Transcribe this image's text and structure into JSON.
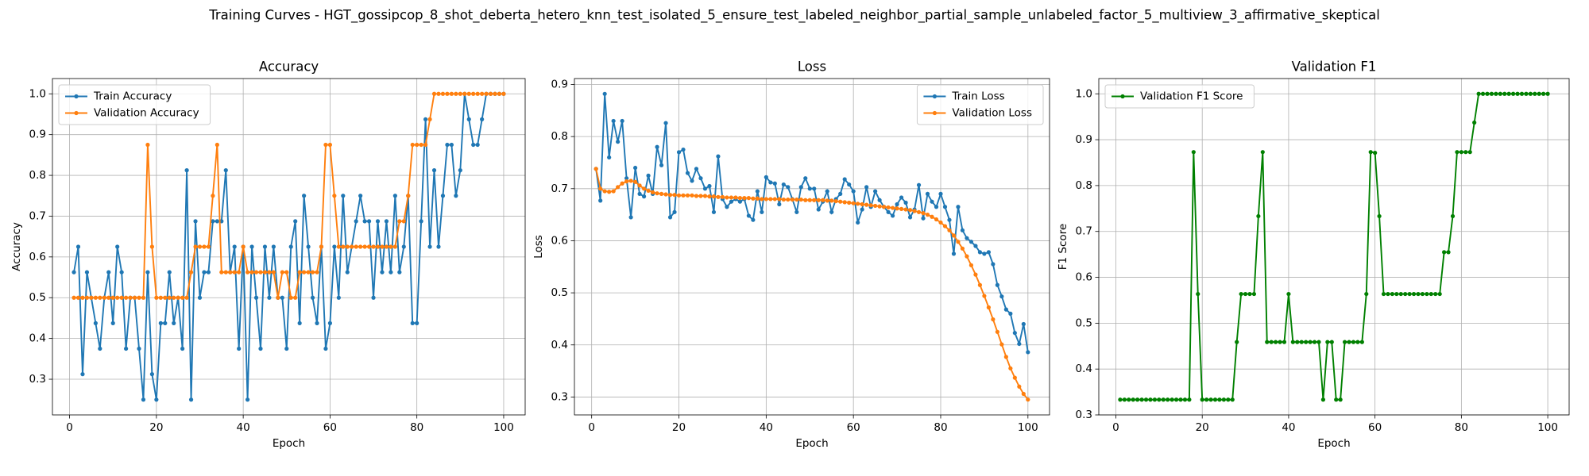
{
  "title": "Training Curves - HGT_gossipcop_8_shot_deberta_hetero_knn_test_isolated_5_ensure_test_labeled_neighbor_partial_sample_unlabeled_factor_5_multiview_3_affirmative_skeptical",
  "chart_data": [
    {
      "type": "line",
      "title": "Accuracy",
      "x_label": "Epoch",
      "y_label": "Accuracy",
      "x": [
        1,
        2,
        3,
        4,
        5,
        6,
        7,
        8,
        9,
        10,
        11,
        12,
        13,
        14,
        15,
        16,
        17,
        18,
        19,
        20,
        21,
        22,
        23,
        24,
        25,
        26,
        27,
        28,
        29,
        30,
        31,
        32,
        33,
        34,
        35,
        36,
        37,
        38,
        39,
        40,
        41,
        42,
        43,
        44,
        45,
        46,
        47,
        48,
        49,
        50,
        51,
        52,
        53,
        54,
        55,
        56,
        57,
        58,
        59,
        60,
        61,
        62,
        63,
        64,
        65,
        66,
        67,
        68,
        69,
        70,
        71,
        72,
        73,
        74,
        75,
        76,
        77,
        78,
        79,
        80,
        81,
        82,
        83,
        84,
        85,
        86,
        87,
        88,
        89,
        90,
        91,
        92,
        93,
        94,
        95,
        96,
        97,
        98,
        99,
        100
      ],
      "series": [
        {
          "name": "Train Accuracy",
          "color": "#1f77b4",
          "values": [
            0.5625,
            0.625,
            0.3125,
            0.5625,
            0.5,
            0.4375,
            0.375,
            0.5,
            0.5625,
            0.4375,
            0.625,
            0.5625,
            0.375,
            0.5,
            0.5,
            0.375,
            0.25,
            0.5625,
            0.3125,
            0.25,
            0.4375,
            0.4375,
            0.5625,
            0.4375,
            0.5,
            0.375,
            0.8125,
            0.25,
            0.6875,
            0.5,
            0.5625,
            0.5625,
            0.6875,
            0.6875,
            0.6875,
            0.8125,
            0.5625,
            0.625,
            0.375,
            0.625,
            0.25,
            0.625,
            0.5,
            0.375,
            0.625,
            0.5,
            0.625,
            0.5,
            0.5,
            0.375,
            0.625,
            0.6875,
            0.4375,
            0.75,
            0.625,
            0.5,
            0.4375,
            0.625,
            0.375,
            0.4375,
            0.625,
            0.5,
            0.75,
            0.5625,
            0.625,
            0.6875,
            0.75,
            0.6875,
            0.6875,
            0.5,
            0.6875,
            0.5625,
            0.6875,
            0.5625,
            0.75,
            0.5625,
            0.625,
            0.75,
            0.4375,
            0.4375,
            0.6875,
            0.9375,
            0.625,
            0.8125,
            0.625,
            0.75,
            0.875,
            0.875,
            0.75,
            0.8125,
            1,
            0.9375,
            0.875,
            0.875,
            0.9375,
            1,
            1,
            1,
            1,
            1
          ]
        },
        {
          "name": "Validation Accuracy",
          "color": "#ff7f0e",
          "values": [
            0.5,
            0.5,
            0.5,
            0.5,
            0.5,
            0.5,
            0.5,
            0.5,
            0.5,
            0.5,
            0.5,
            0.5,
            0.5,
            0.5,
            0.5,
            0.5,
            0.5,
            0.875,
            0.625,
            0.5,
            0.5,
            0.5,
            0.5,
            0.5,
            0.5,
            0.5,
            0.5,
            0.5625,
            0.625,
            0.625,
            0.625,
            0.625,
            0.75,
            0.875,
            0.5625,
            0.5625,
            0.5625,
            0.5625,
            0.5625,
            0.625,
            0.5625,
            0.5625,
            0.5625,
            0.5625,
            0.5625,
            0.5625,
            0.5625,
            0.5,
            0.5625,
            0.5625,
            0.5,
            0.5,
            0.5625,
            0.5625,
            0.5625,
            0.5625,
            0.5625,
            0.625,
            0.875,
            0.875,
            0.75,
            0.625,
            0.625,
            0.625,
            0.625,
            0.625,
            0.625,
            0.625,
            0.625,
            0.625,
            0.625,
            0.625,
            0.625,
            0.625,
            0.625,
            0.6875,
            0.6875,
            0.75,
            0.875,
            0.875,
            0.875,
            0.875,
            0.9375,
            1,
            1,
            1,
            1,
            1,
            1,
            1,
            1,
            1,
            1,
            1,
            1,
            1,
            1,
            1,
            1,
            1
          ]
        }
      ],
      "xlim": [
        -3.95,
        104.95
      ],
      "xticks": [
        0,
        20,
        40,
        60,
        80,
        100
      ],
      "ylim": [
        0.2125,
        1.0375
      ],
      "yticks": [
        0.3,
        0.4,
        0.5,
        0.6,
        0.7,
        0.8,
        0.9,
        {
          "value": 1,
          "label": "1.0"
        }
      ],
      "grid": true,
      "legend": "upper-left"
    },
    {
      "type": "line",
      "title": "Loss",
      "x_label": "Epoch",
      "y_label": "Loss",
      "x": [
        1,
        2,
        3,
        4,
        5,
        6,
        7,
        8,
        9,
        10,
        11,
        12,
        13,
        14,
        15,
        16,
        17,
        18,
        19,
        20,
        21,
        22,
        23,
        24,
        25,
        26,
        27,
        28,
        29,
        30,
        31,
        32,
        33,
        34,
        35,
        36,
        37,
        38,
        39,
        40,
        41,
        42,
        43,
        44,
        45,
        46,
        47,
        48,
        49,
        50,
        51,
        52,
        53,
        54,
        55,
        56,
        57,
        58,
        59,
        60,
        61,
        62,
        63,
        64,
        65,
        66,
        67,
        68,
        69,
        70,
        71,
        72,
        73,
        74,
        75,
        76,
        77,
        78,
        79,
        80,
        81,
        82,
        83,
        84,
        85,
        86,
        87,
        88,
        89,
        90,
        91,
        92,
        93,
        94,
        95,
        96,
        97,
        98,
        99,
        100
      ],
      "series": [
        {
          "name": "Train Loss",
          "color": "#1f77b4",
          "values": [
            0.738,
            0.677,
            0.882,
            0.76,
            0.83,
            0.79,
            0.83,
            0.72,
            0.645,
            0.74,
            0.69,
            0.685,
            0.725,
            0.69,
            0.78,
            0.745,
            0.826,
            0.645,
            0.655,
            0.77,
            0.775,
            0.73,
            0.715,
            0.738,
            0.72,
            0.7,
            0.705,
            0.655,
            0.762,
            0.68,
            0.665,
            0.675,
            0.68,
            0.675,
            0.68,
            0.648,
            0.64,
            0.695,
            0.655,
            0.722,
            0.712,
            0.71,
            0.67,
            0.708,
            0.703,
            0.68,
            0.655,
            0.703,
            0.72,
            0.7,
            0.7,
            0.66,
            0.675,
            0.695,
            0.655,
            0.68,
            0.69,
            0.718,
            0.708,
            0.695,
            0.635,
            0.66,
            0.703,
            0.665,
            0.695,
            0.678,
            0.665,
            0.655,
            0.648,
            0.67,
            0.683,
            0.673,
            0.645,
            0.66,
            0.707,
            0.643,
            0.69,
            0.675,
            0.665,
            0.69,
            0.665,
            0.64,
            0.575,
            0.665,
            0.62,
            0.605,
            0.598,
            0.59,
            0.578,
            0.575,
            0.578,
            0.555,
            0.515,
            0.493,
            0.468,
            0.46,
            0.423,
            0.402,
            0.44,
            0.386
          ]
        },
        {
          "name": "Validation Loss",
          "color": "#ff7f0e",
          "values": [
            0.738,
            0.7,
            0.695,
            0.694,
            0.695,
            0.703,
            0.71,
            0.714,
            0.715,
            0.713,
            0.706,
            0.7,
            0.696,
            0.693,
            0.691,
            0.69,
            0.689,
            0.688,
            0.688,
            0.687,
            0.687,
            0.687,
            0.687,
            0.686,
            0.686,
            0.686,
            0.685,
            0.685,
            0.684,
            0.684,
            0.683,
            0.683,
            0.683,
            0.682,
            0.682,
            0.682,
            0.681,
            0.681,
            0.68,
            0.68,
            0.68,
            0.68,
            0.68,
            0.679,
            0.679,
            0.679,
            0.679,
            0.679,
            0.678,
            0.678,
            0.678,
            0.678,
            0.678,
            0.677,
            0.677,
            0.676,
            0.675,
            0.674,
            0.673,
            0.672,
            0.671,
            0.67,
            0.669,
            0.668,
            0.667,
            0.666,
            0.665,
            0.664,
            0.663,
            0.662,
            0.661,
            0.66,
            0.659,
            0.657,
            0.655,
            0.653,
            0.65,
            0.646,
            0.641,
            0.635,
            0.628,
            0.62,
            0.61,
            0.598,
            0.585,
            0.57,
            0.553,
            0.535,
            0.515,
            0.494,
            0.472,
            0.449,
            0.425,
            0.401,
            0.377,
            0.355,
            0.337,
            0.32,
            0.306,
            0.295
          ]
        }
      ],
      "xlim": [
        -3.95,
        104.95
      ],
      "xticks": [
        0,
        20,
        40,
        60,
        80,
        100
      ],
      "ylim": [
        0.2656,
        0.9114
      ],
      "yticks": [
        0.3,
        0.4,
        0.5,
        0.6,
        0.7,
        0.8,
        0.9
      ],
      "grid": true,
      "legend": "upper-right"
    },
    {
      "type": "line",
      "title": "Validation F1",
      "x_label": "Epoch",
      "y_label": "F1 Score",
      "x": [
        1,
        2,
        3,
        4,
        5,
        6,
        7,
        8,
        9,
        10,
        11,
        12,
        13,
        14,
        15,
        16,
        17,
        18,
        19,
        20,
        21,
        22,
        23,
        24,
        25,
        26,
        27,
        28,
        29,
        30,
        31,
        32,
        33,
        34,
        35,
        36,
        37,
        38,
        39,
        40,
        41,
        42,
        43,
        44,
        45,
        46,
        47,
        48,
        49,
        50,
        51,
        52,
        53,
        54,
        55,
        56,
        57,
        58,
        59,
        60,
        61,
        62,
        63,
        64,
        65,
        66,
        67,
        68,
        69,
        70,
        71,
        72,
        73,
        74,
        75,
        76,
        77,
        78,
        79,
        80,
        81,
        82,
        83,
        84,
        85,
        86,
        87,
        88,
        89,
        90,
        91,
        92,
        93,
        94,
        95,
        96,
        97,
        98,
        99,
        100
      ],
      "series": [
        {
          "name": "Validation F1 Score",
          "color": "#008000",
          "values": [
            0.3333,
            0.3333,
            0.3333,
            0.3333,
            0.3333,
            0.3333,
            0.3333,
            0.3333,
            0.3333,
            0.3333,
            0.3333,
            0.3333,
            0.3333,
            0.3333,
            0.3333,
            0.3333,
            0.3333,
            0.873,
            0.5636,
            0.3333,
            0.3333,
            0.3333,
            0.3333,
            0.3333,
            0.3333,
            0.3333,
            0.3333,
            0.4589,
            0.5636,
            0.5636,
            0.5636,
            0.5636,
            0.7333,
            0.873,
            0.4589,
            0.4589,
            0.4589,
            0.4589,
            0.4589,
            0.5636,
            0.4589,
            0.4589,
            0.4589,
            0.4589,
            0.4589,
            0.4589,
            0.4589,
            0.3333,
            0.4589,
            0.4589,
            0.3333,
            0.3333,
            0.4589,
            0.4589,
            0.4589,
            0.4589,
            0.4589,
            0.5636,
            0.873,
            0.8714,
            0.7333,
            0.5636,
            0.5636,
            0.5636,
            0.5636,
            0.5636,
            0.5636,
            0.5636,
            0.5636,
            0.5636,
            0.5636,
            0.5636,
            0.5636,
            0.5636,
            0.5636,
            0.6548,
            0.6548,
            0.7333,
            0.873,
            0.873,
            0.873,
            0.873,
            0.9373,
            1,
            1,
            1,
            1,
            1,
            1,
            1,
            1,
            1,
            1,
            1,
            1,
            1,
            1,
            1,
            1,
            1
          ]
        }
      ],
      "xlim": [
        -3.95,
        104.95
      ],
      "xticks": [
        0,
        20,
        40,
        60,
        80,
        100
      ],
      "ylim": [
        0.3,
        1.0333
      ],
      "yticks": [
        0.3,
        0.4,
        0.5,
        0.6,
        0.7,
        0.8,
        0.9,
        {
          "value": 1,
          "label": "1.0"
        }
      ],
      "grid": true,
      "legend": "upper-left"
    }
  ]
}
